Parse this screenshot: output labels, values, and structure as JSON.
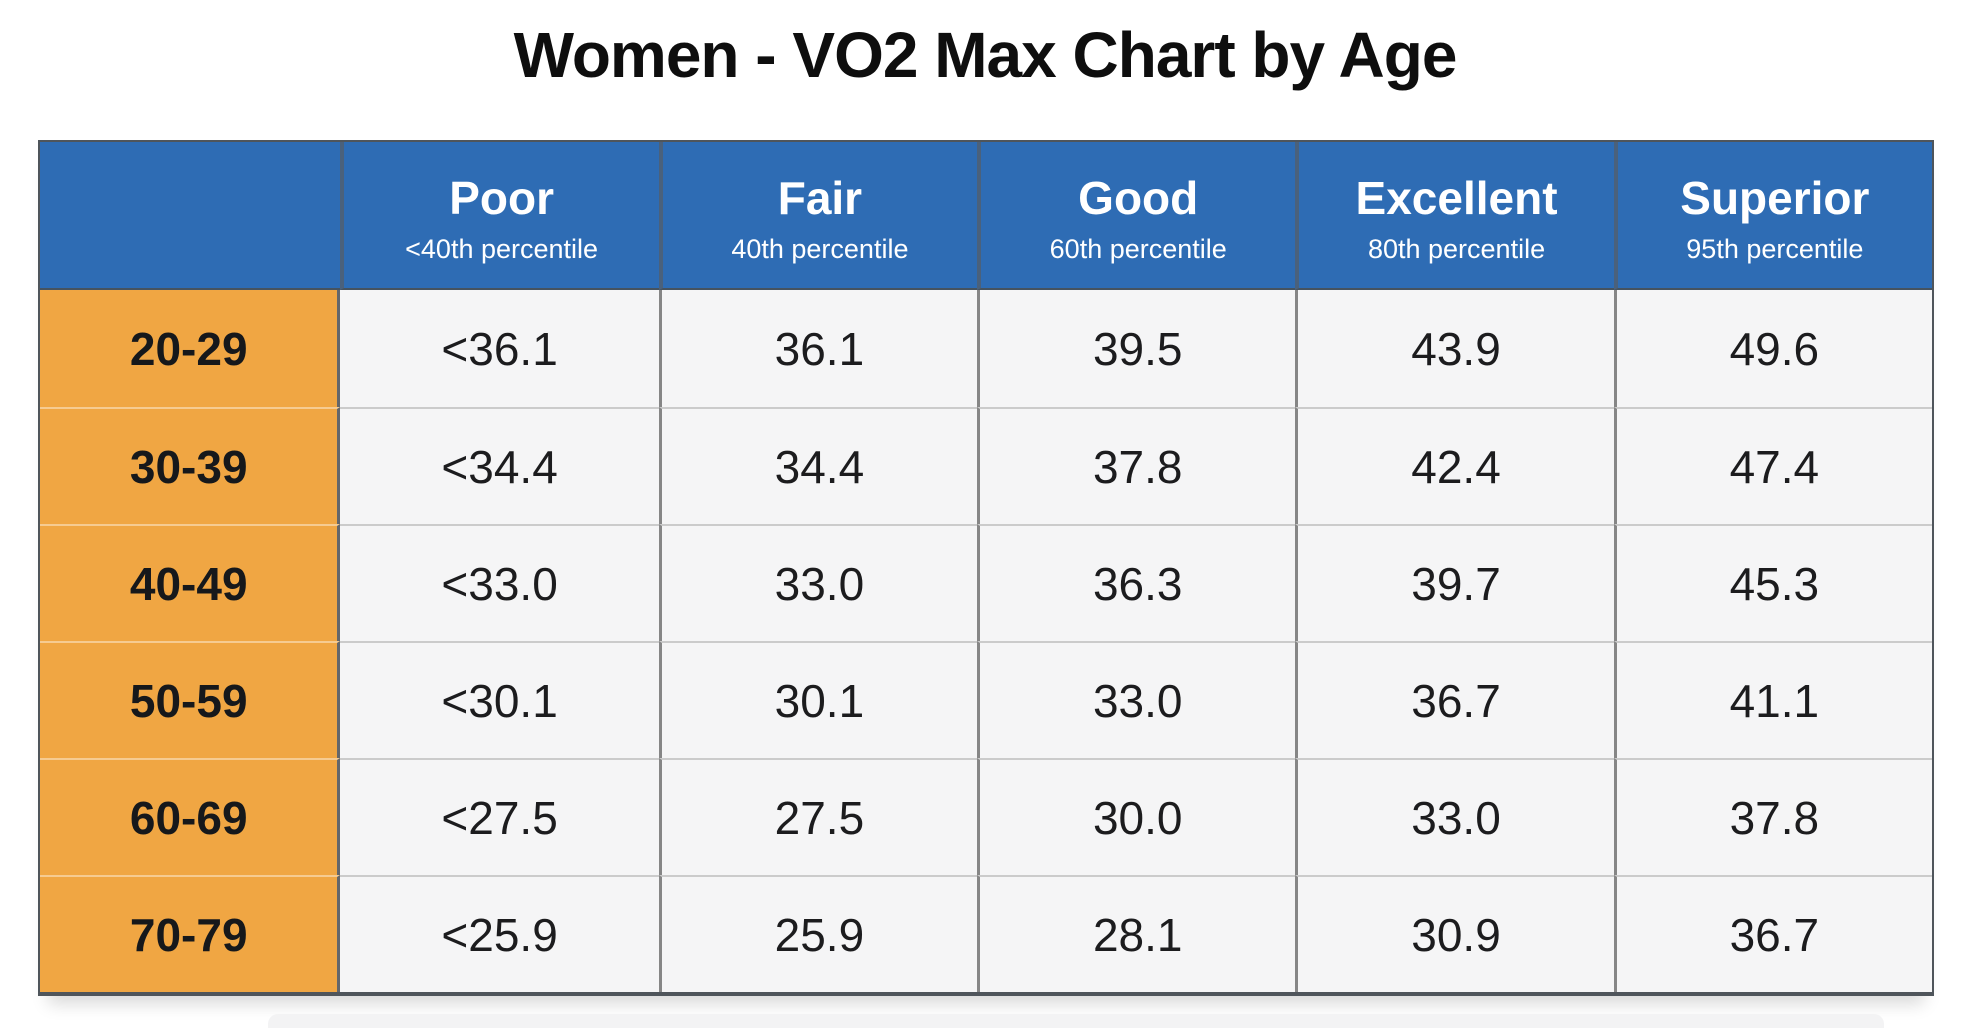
{
  "title": "Women - VO2 Max Chart by Age",
  "table": {
    "corner_label": "",
    "columns": [
      {
        "label": "Poor",
        "sublabel": "<40th percentile"
      },
      {
        "label": "Fair",
        "sublabel": "40th percentile"
      },
      {
        "label": "Good",
        "sublabel": "60th percentile"
      },
      {
        "label": "Excellent",
        "sublabel": "80th percentile"
      },
      {
        "label": "Superior",
        "sublabel": "95th percentile"
      }
    ],
    "rows": [
      {
        "age": "20-29",
        "values": [
          "<36.1",
          "36.1",
          "39.5",
          "43.9",
          "49.6"
        ]
      },
      {
        "age": "30-39",
        "values": [
          "<34.4",
          "34.4",
          "37.8",
          "42.4",
          "47.4"
        ]
      },
      {
        "age": "40-49",
        "values": [
          "<33.0",
          "33.0",
          "36.3",
          "39.7",
          "45.3"
        ]
      },
      {
        "age": "50-59",
        "values": [
          "<30.1",
          "30.1",
          "33.0",
          "36.7",
          "41.1"
        ]
      },
      {
        "age": "60-69",
        "values": [
          "<27.5",
          "27.5",
          "30.0",
          "33.0",
          "37.8"
        ]
      },
      {
        "age": "70-79",
        "values": [
          "<25.9",
          "25.9",
          "28.1",
          "30.9",
          "36.7"
        ]
      }
    ]
  },
  "colors": {
    "header_bg": "#2E6CB4",
    "header_divider": "#4A617C",
    "header_text": "#FFFFFF",
    "age_bg": "#F0A643",
    "age_text": "#16181B",
    "cell_bg": "#F5F5F6",
    "cell_text": "#1C1C1E",
    "col_line": "#868686",
    "row_line": "#CBCBCB",
    "outer_line": "#4F555B"
  },
  "chart_data": {
    "type": "table",
    "title": "Women - VO2 Max Chart by Age",
    "columns": [
      "Age",
      "Poor (<40th percentile)",
      "Fair (40th percentile)",
      "Good (60th percentile)",
      "Excellent (80th percentile)",
      "Superior (95th percentile)"
    ],
    "rows": [
      [
        "20-29",
        "<36.1",
        "36.1",
        "39.5",
        "43.9",
        "49.6"
      ],
      [
        "30-39",
        "<34.4",
        "34.4",
        "37.8",
        "42.4",
        "47.4"
      ],
      [
        "40-49",
        "<33.0",
        "33.0",
        "36.3",
        "39.7",
        "45.3"
      ],
      [
        "50-59",
        "<30.1",
        "30.1",
        "33.0",
        "36.7",
        "41.1"
      ],
      [
        "60-69",
        "<27.5",
        "27.5",
        "30.0",
        "33.0",
        "37.8"
      ],
      [
        "70-79",
        "<25.9",
        "25.9",
        "28.1",
        "30.9",
        "36.7"
      ]
    ]
  }
}
